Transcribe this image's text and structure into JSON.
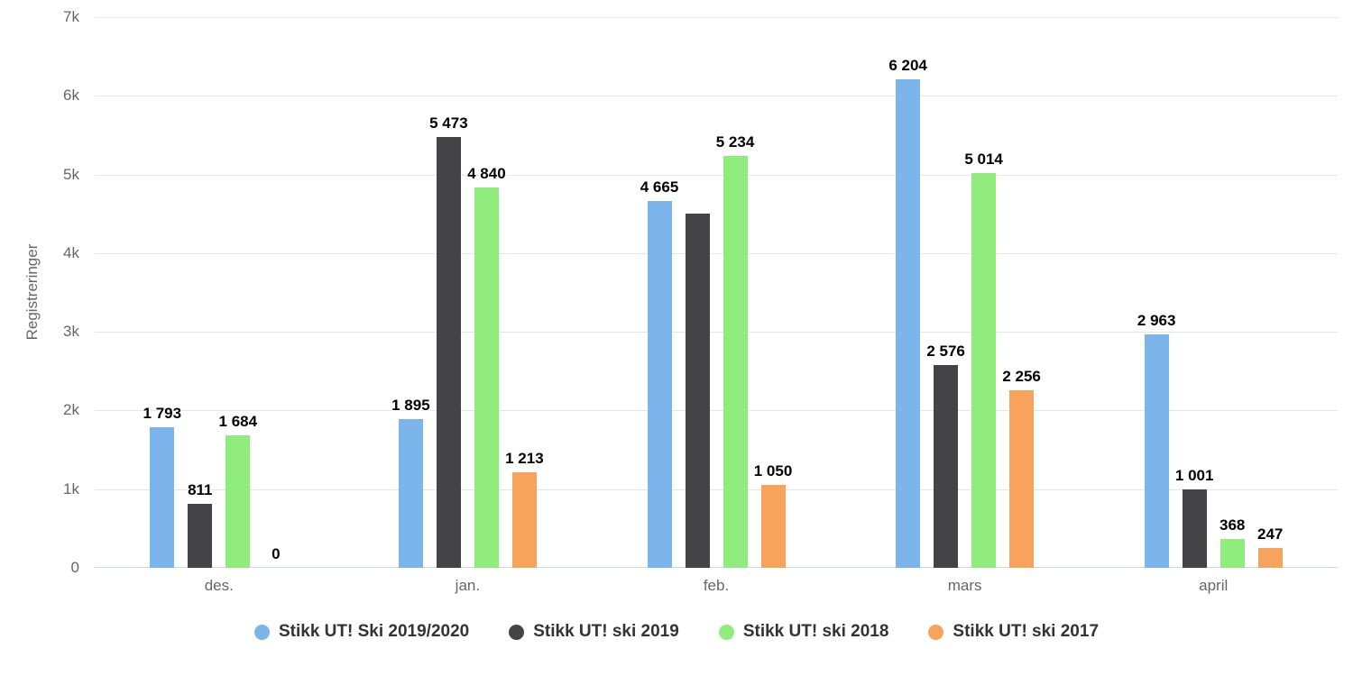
{
  "chart_data": {
    "type": "bar",
    "title": "",
    "ylabel": "Registreringer",
    "xlabel": "",
    "categories": [
      "des.",
      "jan.",
      "feb.",
      "mars",
      "april"
    ],
    "y_ticks": [
      {
        "value": 0,
        "label": "0"
      },
      {
        "value": 1000,
        "label": "1k"
      },
      {
        "value": 2000,
        "label": "2k"
      },
      {
        "value": 3000,
        "label": "3k"
      },
      {
        "value": 4000,
        "label": "4k"
      },
      {
        "value": 5000,
        "label": "5k"
      },
      {
        "value": 6000,
        "label": "6k"
      },
      {
        "value": 7000,
        "label": "7k"
      }
    ],
    "ylim": [
      0,
      7000
    ],
    "grid": true,
    "legend_position": "bottom",
    "series": [
      {
        "name": "Stikk UT! Ski 2019/2020",
        "color": "#7cb5ec",
        "values": [
          1793,
          1895,
          4665,
          6204,
          2963
        ],
        "labels": [
          "1 793",
          "1 895",
          "4 665",
          "6 204",
          "2 963"
        ]
      },
      {
        "name": "Stikk UT! ski 2019",
        "color": "#434348",
        "values": [
          811,
          5473,
          4500,
          2576,
          1001
        ],
        "labels": [
          "811",
          "5 473",
          "",
          "2 576",
          "1 001"
        ]
      },
      {
        "name": "Stikk UT! ski 2018",
        "color": "#90ed7d",
        "values": [
          1684,
          4840,
          5234,
          5014,
          368
        ],
        "labels": [
          "1 684",
          "4 840",
          "5 234",
          "5 014",
          "368"
        ]
      },
      {
        "name": "Stikk UT! ski 2017",
        "color": "#f7a35c",
        "values": [
          0,
          1213,
          1050,
          2256,
          247
        ],
        "labels": [
          "0",
          "1 213",
          "1 050",
          "2 256",
          "247"
        ]
      }
    ],
    "style": {
      "grid_color": "#e6e6e6",
      "axis_line_color": "#ccd6eb",
      "axis_text_color": "#666666",
      "data_label_color": "#000000",
      "legend_text_color": "#333333",
      "background": "#ffffff"
    }
  }
}
